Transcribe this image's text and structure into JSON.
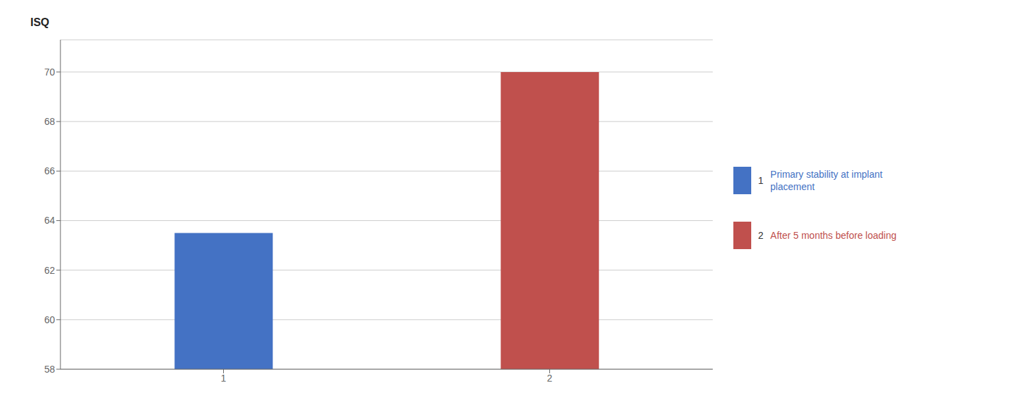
{
  "chart_data": {
    "type": "bar",
    "ylabel": "ISQ",
    "categories": [
      "1",
      "2"
    ],
    "series": [
      {
        "name": "Primary stability at implant\nplacement",
        "color": "#4472c4",
        "values": [
          63.5,
          null
        ]
      },
      {
        "name": "After 5 months before loading",
        "color": "#c0504d",
        "values": [
          null,
          70.0
        ]
      }
    ],
    "ylim": [
      58,
      71.3
    ],
    "yticks": [
      58,
      60,
      62,
      64,
      66,
      68,
      70
    ],
    "grid": true,
    "legend": "right"
  }
}
